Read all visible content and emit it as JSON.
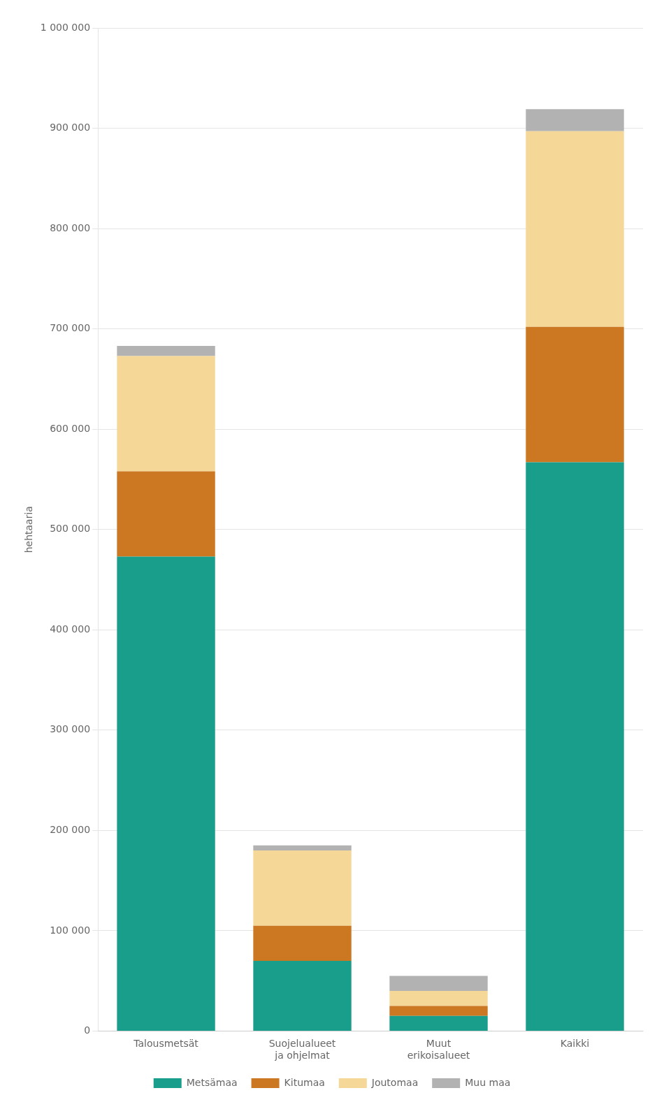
{
  "chart_data": {
    "type": "bar",
    "stacked": true,
    "categories": [
      "Talousmetsät",
      "Suojelualueet\nja ohjelmat",
      "Muut\nerikoisalueet",
      "Kaikki"
    ],
    "series": [
      {
        "name": "Metsämaa",
        "color": "#1a9e8c",
        "values": [
          473000,
          70000,
          15000,
          567000
        ]
      },
      {
        "name": "Kitumaa",
        "color": "#cc7722",
        "values": [
          85000,
          35000,
          10000,
          135000
        ]
      },
      {
        "name": "Joutomaa",
        "color": "#f5d898",
        "values": [
          115000,
          75000,
          15000,
          195000
        ]
      },
      {
        "name": "Muu maa",
        "color": "#b2b2b2",
        "values": [
          10000,
          5000,
          15000,
          22000
        ]
      }
    ],
    "ylabel": "hehtaaria",
    "ylim": [
      0,
      1000000
    ],
    "yticks": [
      0,
      {
        "value": 100000,
        "label": "100 000"
      },
      {
        "value": 200000,
        "label": "200 000"
      },
      {
        "value": 300000,
        "label": "300 000"
      },
      {
        "value": 400000,
        "label": "400 000"
      },
      {
        "value": 500000,
        "label": "500 000"
      },
      {
        "value": 600000,
        "label": "600 000"
      },
      {
        "value": 700000,
        "label": "700 000"
      },
      {
        "value": 800000,
        "label": "800 000"
      },
      {
        "value": 900000,
        "label": "900 000"
      },
      {
        "value": 1000000,
        "label": "1 000 000"
      }
    ],
    "grid": true,
    "legend": "bottom"
  }
}
